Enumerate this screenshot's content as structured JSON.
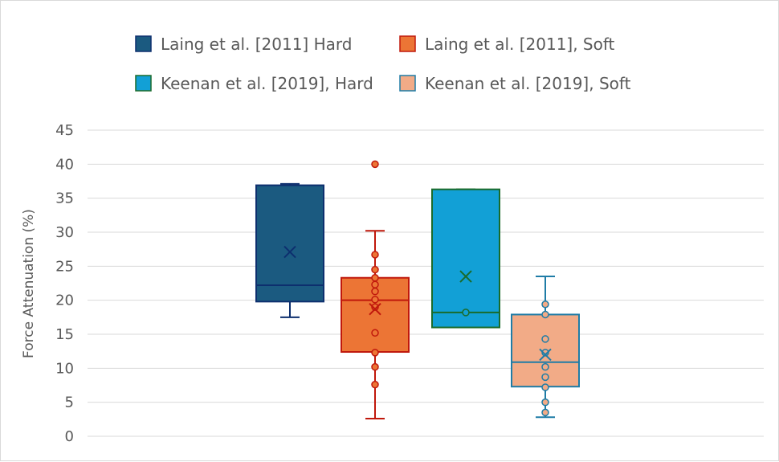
{
  "chart_data": {
    "type": "box",
    "title": "",
    "xlabel": "",
    "ylabel": "Force Attenuation (%)",
    "ylim": [
      0,
      45
    ],
    "yticks": [
      0,
      5,
      10,
      15,
      20,
      25,
      30,
      35,
      40,
      45
    ],
    "grid": "horizontal",
    "legend_position": "top",
    "series": [
      {
        "name": "Laing et al. [2011] Hard",
        "fill": "#1b5a80",
        "stroke": "#0d2f6e",
        "min": 17.5,
        "q1": 19.8,
        "median": 22.2,
        "q3": 36.9,
        "max": 37.1,
        "mean": 27.1,
        "points": []
      },
      {
        "name": "Laing et al. [2011], Soft",
        "fill": "#ec7535",
        "stroke": "#c0180c",
        "min": 2.6,
        "q1": 12.4,
        "median": 20.0,
        "q3": 23.3,
        "max": 30.2,
        "mean": 18.7,
        "points": [
          40.0,
          26.7,
          24.5,
          23.3,
          22.3,
          21.3,
          20.1,
          19.0,
          15.2,
          12.3,
          10.2,
          7.6
        ]
      },
      {
        "name": "Keenan et al. [2019], Hard",
        "fill": "#12a0d6",
        "stroke": "#1a6b2b",
        "min": 16.0,
        "q1": 16.0,
        "median": 18.2,
        "q3": 36.3,
        "max": 36.3,
        "mean": 23.5,
        "points": [
          18.2
        ]
      },
      {
        "name": "Keenan et al. [2019], Soft",
        "fill": "#f2ab87",
        "stroke": "#1f7ca6",
        "min": 2.8,
        "q1": 7.3,
        "median": 10.9,
        "q3": 17.9,
        "max": 23.5,
        "mean": 12.0,
        "points": [
          19.4,
          17.9,
          14.3,
          12.3,
          10.2,
          8.7,
          7.2,
          5.0,
          3.5
        ]
      }
    ]
  }
}
